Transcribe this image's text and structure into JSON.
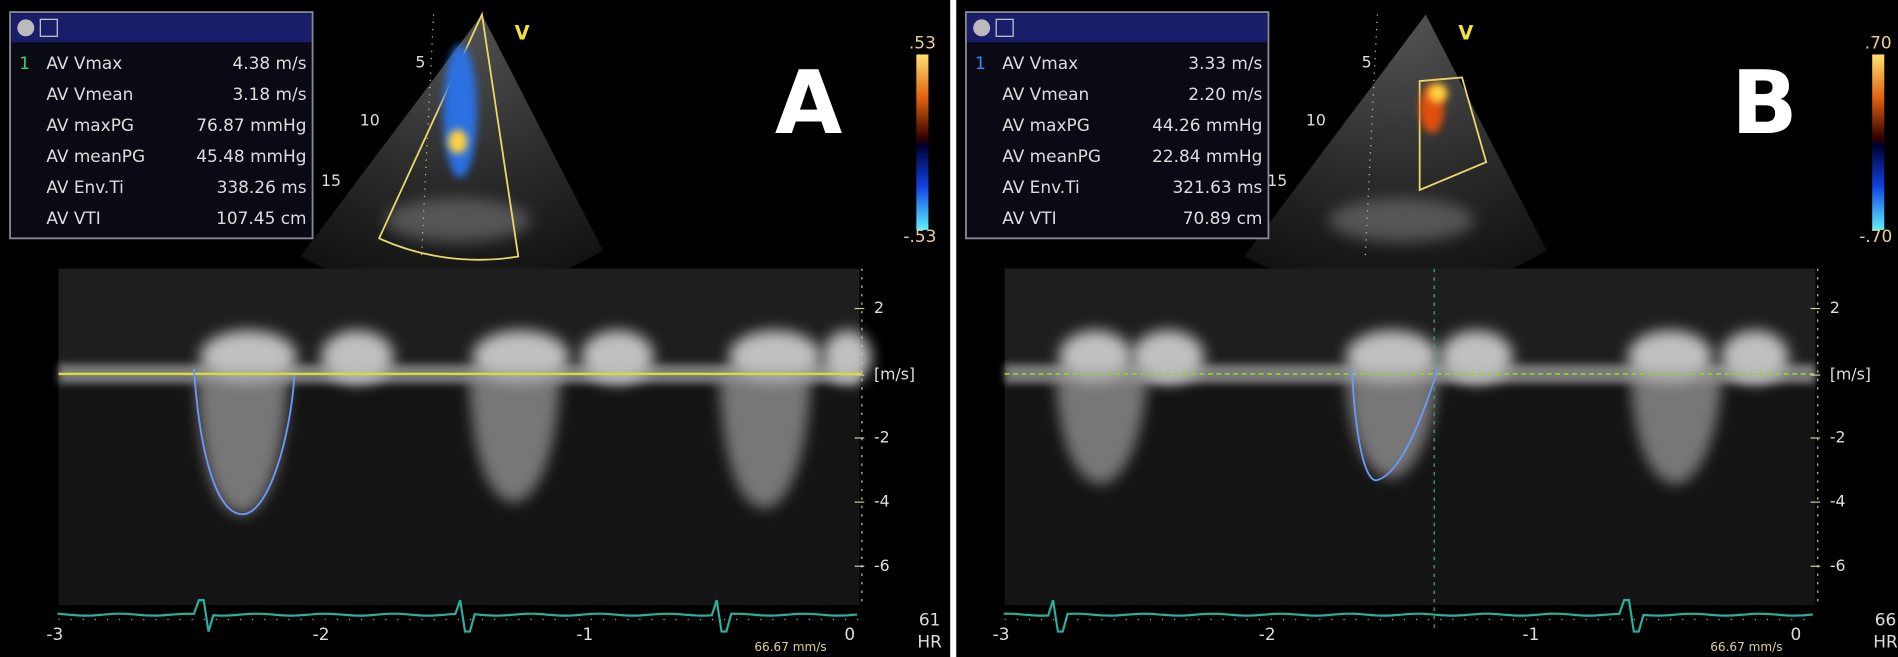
{
  "panels": [
    {
      "label": "A",
      "measurement_box": {
        "index": "1",
        "rows": [
          {
            "name": "AV Vmax",
            "value": "4.38 m/s"
          },
          {
            "name": "AV Vmean",
            "value": "3.18 m/s"
          },
          {
            "name": "AV maxPG",
            "value": "76.87 mmHg"
          },
          {
            "name": "AV meanPG",
            "value": "45.48 mmHg"
          },
          {
            "name": "AV Env.Ti",
            "value": "338.26 ms"
          },
          {
            "name": "AV VTI",
            "value": "107.45 cm"
          }
        ]
      },
      "sector": {
        "marker": "V",
        "depths": [
          "5",
          "10",
          "15"
        ]
      },
      "color_scale": {
        "max": ".53",
        "min": "-.53"
      },
      "doppler": {
        "velocity_ticks": [
          "2",
          "[m/s]",
          "-2",
          "-4",
          "-6"
        ],
        "time_ticks": [
          "-3",
          "-2",
          "-1",
          "0"
        ],
        "heart_rate": "61",
        "heart_rate_label": "HR",
        "sweep_speed": "66.67 mm/s"
      }
    },
    {
      "label": "B",
      "measurement_box": {
        "index": "1",
        "rows": [
          {
            "name": "AV Vmax",
            "value": "3.33 m/s"
          },
          {
            "name": "AV Vmean",
            "value": "2.20 m/s"
          },
          {
            "name": "AV maxPG",
            "value": "44.26 mmHg"
          },
          {
            "name": "AV meanPG",
            "value": "22.84 mmHg"
          },
          {
            "name": "AV Env.Ti",
            "value": "321.63 ms"
          },
          {
            "name": "AV VTI",
            "value": "70.89 cm"
          }
        ]
      },
      "sector": {
        "marker": "V",
        "depths": [
          "5",
          "10",
          "15"
        ]
      },
      "color_scale": {
        "max": ".70",
        "min": "-.70"
      },
      "doppler": {
        "velocity_ticks": [
          "2",
          "[m/s]",
          "-2",
          "-4",
          "-6"
        ],
        "time_ticks": [
          "-3",
          "-2",
          "-1",
          "0"
        ],
        "heart_rate": "66",
        "heart_rate_label": "HR",
        "sweep_speed": "66.67 mm/s"
      }
    }
  ]
}
